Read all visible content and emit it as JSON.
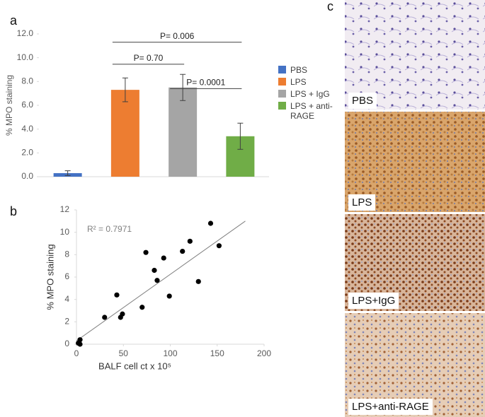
{
  "panel_labels": [
    "a",
    "b",
    "c"
  ],
  "chart_data": [
    {
      "type": "bar",
      "y_label": "% MPO staining",
      "series": [
        {
          "name": "PBS",
          "color": "#4472c4",
          "values": [
            0.3
          ],
          "errors": [
            0.2
          ]
        },
        {
          "name": "LPS",
          "color": "#ed7d31",
          "values": [
            7.3
          ],
          "errors": [
            1.0
          ]
        },
        {
          "name": "LPS + IgG",
          "color": "#a5a5a5",
          "values": [
            7.5
          ],
          "errors": [
            1.1
          ]
        },
        {
          "name": "LPS + anti-RAGE",
          "color": "#70ad47",
          "values": [
            3.4
          ],
          "errors": [
            1.1
          ]
        }
      ],
      "ylim": [
        0,
        12
      ],
      "yticks": [
        {
          "value": 0,
          "label": "0.0"
        },
        {
          "value": 2,
          "label": "2.0"
        },
        {
          "value": 4,
          "label": "4.0"
        },
        {
          "value": 6,
          "label": "6.0"
        },
        {
          "value": 8,
          "label": "8.0"
        },
        {
          "value": 10,
          "label": "10.0"
        },
        {
          "value": 12,
          "label": "12.0"
        }
      ],
      "annotations": [
        {
          "text": "P= 0.006",
          "y": 11.3
        },
        {
          "text": "P= 0.70",
          "y": 9.45
        },
        {
          "text": "P= 0.0001",
          "y": 7.4
        }
      ]
    },
    {
      "type": "scatter",
      "x_label": "BALF cell ct x 10⁵",
      "y_label": "% MPO staining",
      "x": [
        3.8,
        3.8,
        2,
        30,
        43,
        47,
        49,
        74,
        70,
        83,
        86,
        93,
        99,
        113,
        121,
        130,
        143,
        152
      ],
      "values": [
        0.4,
        0,
        0.1,
        2.4,
        4.4,
        2.4,
        2.7,
        8.2,
        3.3,
        6.6,
        5.7,
        7.7,
        4.3,
        8.3,
        9.2,
        5.6,
        10.8,
        8.8
      ],
      "color": "#000000",
      "trendline": {
        "x": [
          0,
          180
        ],
        "y": [
          0.3,
          11.0
        ],
        "color": "#808080"
      },
      "annotation": "R² = 0.7971",
      "xlim": [
        0,
        200
      ],
      "xticks": [
        0,
        50,
        100,
        150,
        200
      ],
      "ylim": [
        0,
        12
      ],
      "yticks": [
        0,
        2,
        4,
        6,
        8,
        10,
        12
      ]
    }
  ],
  "images": {
    "labels": [
      "PBS",
      "LPS",
      "LPS+IgG",
      "LPS+anti-RAGE"
    ]
  }
}
